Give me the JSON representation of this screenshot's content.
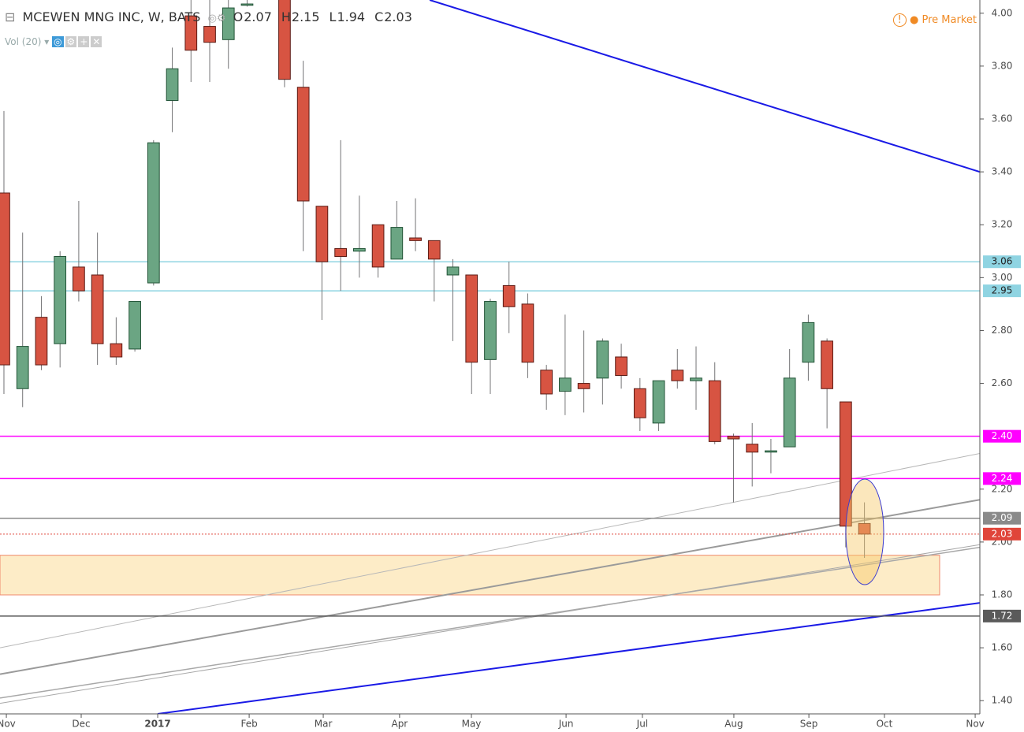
{
  "header": {
    "symbol": "MCEWEN MNG INC, W, BATS",
    "ohlc": [
      {
        "key": "O",
        "value": 2.07
      },
      {
        "key": "H",
        "value": 2.15
      },
      {
        "key": "L",
        "value": 1.94
      },
      {
        "key": "C",
        "value": 2.03
      }
    ],
    "indicator": "Vol (20)",
    "status": "Pre Market"
  },
  "chart_data": {
    "type": "candlestick",
    "x": [
      0,
      1,
      2,
      3,
      4,
      5,
      6,
      7,
      8,
      9,
      10,
      11,
      12,
      13,
      15,
      16,
      17,
      18,
      19,
      20,
      21,
      22,
      23,
      24,
      25,
      26,
      27,
      28,
      29,
      30,
      31,
      32,
      33,
      34,
      35,
      36,
      37,
      38,
      39,
      40,
      41,
      42,
      43,
      44,
      45,
      46
    ],
    "open": [
      3.32,
      2.58,
      2.85,
      2.75,
      3.04,
      3.01,
      2.75,
      2.73,
      2.98,
      3.67,
      3.99,
      3.95,
      3.9,
      4.03,
      4.1,
      3.72,
      3.27,
      3.11,
      3.1,
      3.2,
      3.07,
      3.15,
      3.14,
      3.01,
      3.01,
      2.69,
      2.97,
      2.9,
      2.65,
      2.57,
      2.6,
      2.62,
      2.7,
      2.58,
      2.45,
      2.65,
      2.61,
      2.61,
      2.4,
      2.37,
      2.34,
      2.36,
      2.68,
      2.76,
      2.53,
      2.07
    ],
    "high": [
      3.63,
      3.17,
      2.93,
      3.1,
      3.29,
      3.17,
      2.85,
      2.91,
      3.52,
      3.87,
      4.1,
      4.1,
      4.1,
      4.05,
      4.15,
      3.82,
      3.27,
      3.52,
      3.31,
      3.2,
      3.29,
      3.3,
      3.14,
      3.07,
      3.01,
      2.92,
      3.06,
      2.94,
      2.67,
      2.86,
      2.8,
      2.77,
      2.75,
      2.62,
      2.61,
      2.73,
      2.74,
      2.68,
      2.41,
      2.45,
      2.39,
      2.73,
      2.86,
      2.77,
      2.53,
      2.15
    ],
    "low": [
      2.56,
      2.51,
      2.65,
      2.66,
      2.91,
      2.67,
      2.67,
      2.72,
      2.97,
      3.55,
      3.74,
      3.74,
      3.79,
      4.025,
      3.72,
      3.1,
      2.84,
      2.95,
      3.0,
      3.0,
      3.07,
      3.1,
      2.91,
      2.76,
      2.56,
      2.56,
      2.79,
      2.62,
      2.5,
      2.48,
      2.49,
      2.52,
      2.58,
      2.42,
      2.42,
      2.58,
      2.5,
      2.37,
      2.15,
      2.21,
      2.26,
      2.36,
      2.61,
      2.43,
      1.98,
      1.94
    ],
    "close": [
      2.67,
      2.74,
      2.67,
      3.08,
      2.95,
      2.75,
      2.7,
      2.91,
      3.51,
      3.79,
      3.86,
      3.89,
      4.02,
      4.035,
      3.75,
      3.29,
      3.06,
      3.08,
      3.11,
      3.04,
      3.19,
      3.14,
      3.07,
      3.04,
      2.68,
      2.91,
      2.89,
      2.68,
      2.56,
      2.62,
      2.58,
      2.76,
      2.63,
      2.47,
      2.61,
      2.61,
      2.62,
      2.38,
      2.39,
      2.34,
      2.345,
      2.62,
      2.83,
      2.58,
      2.06,
      2.03
    ],
    "up_color": "#6ba583",
    "down_color": "#d75442",
    "xlim": [
      -0.21,
      52.17
    ],
    "ylim": [
      1.35,
      4.05
    ],
    "xticks": [
      {
        "value": 0.13,
        "label": "Nov"
      },
      {
        "value": 4.13,
        "label": "Dec"
      },
      {
        "value": 8.22,
        "label": "2017"
      },
      {
        "value": 13.11,
        "label": "Feb"
      },
      {
        "value": 17.07,
        "label": "Mar"
      },
      {
        "value": 21.15,
        "label": "Apr"
      },
      {
        "value": 24.99,
        "label": "May"
      },
      {
        "value": 30.05,
        "label": "Jun"
      },
      {
        "value": 34.13,
        "label": "Jul"
      },
      {
        "value": 39.02,
        "label": "Aug"
      },
      {
        "value": 43.03,
        "label": "Sep"
      },
      {
        "value": 47.07,
        "label": "Oct"
      },
      {
        "value": 51.92,
        "label": "Nov"
      }
    ],
    "yticks": [
      {
        "value": 4,
        "label": "4.00"
      },
      {
        "value": 3.8,
        "label": "3.80"
      },
      {
        "value": 3.6,
        "label": "3.60"
      },
      {
        "value": 3.4,
        "label": "3.40"
      },
      {
        "value": 3.2,
        "label": "3.20"
      },
      {
        "value": 3,
        "label": "3.00"
      },
      {
        "value": 2.8,
        "label": "2.80"
      },
      {
        "value": 2.6,
        "label": "2.60"
      },
      {
        "value": 2.2,
        "label": "2.20"
      },
      {
        "value": 2,
        "label": "2.00"
      },
      {
        "value": 1.8,
        "label": "1.80"
      },
      {
        "value": 1.6,
        "label": "1.60"
      },
      {
        "value": 1.4,
        "label": "1.40"
      }
    ],
    "levels": [
      {
        "value": 3.06,
        "label": "3.06",
        "color": "#8fd4e2",
        "text_color": "#222222"
      },
      {
        "value": 2.95,
        "label": "2.95",
        "color": "#8fd4e2",
        "text_color": "#222222"
      },
      {
        "value": 2.4,
        "label": "2.40",
        "color": "#ff00ff",
        "text_color": "#ffffff"
      },
      {
        "value": 2.24,
        "label": "2.24",
        "color": "#ff00ff",
        "text_color": "#ffffff"
      },
      {
        "value": 2.09,
        "label": "2.09",
        "color": "#8a8a8a",
        "text_color": "#ffffff"
      },
      {
        "value": 2.03,
        "label": "2.03",
        "color": "#e0453a",
        "text_color": "#ffffff",
        "dotted": true
      },
      {
        "value": 1.72,
        "label": "1.72",
        "color": "#5a5a5a",
        "text_color": "#ffffff"
      }
    ],
    "trendlines": [
      {
        "x": [
          22.76,
          52.17
        ],
        "y": [
          4.05,
          3.4
        ],
        "color": "#1a1ae6",
        "width": 2
      },
      {
        "x": [
          8.22,
          52.17
        ],
        "y": [
          1.35,
          1.77
        ],
        "color": "#1a1ae6",
        "width": 2
      },
      {
        "x": [
          -0.21,
          52.17
        ],
        "y": [
          1.6,
          2.335
        ],
        "color": "#b8b8b8",
        "width": 1
      },
      {
        "x": [
          -0.21,
          52.17
        ],
        "y": [
          1.5,
          2.16
        ],
        "color": "#9a9a9a",
        "width": 2
      },
      {
        "x": [
          -0.21,
          52.17
        ],
        "y": [
          1.41,
          1.98
        ],
        "color": "#a8a8a8",
        "width": 1.5
      },
      {
        "x": [
          -0.21,
          52.17
        ],
        "y": [
          1.39,
          1.99
        ],
        "color": "#a8a8a8",
        "width": 1
      }
    ],
    "zone": {
      "x": [
        -0.21,
        50.02
      ],
      "y": [
        1.8,
        1.95
      ],
      "color": "#fde9bd",
      "border": "#f08a6e"
    }
  }
}
